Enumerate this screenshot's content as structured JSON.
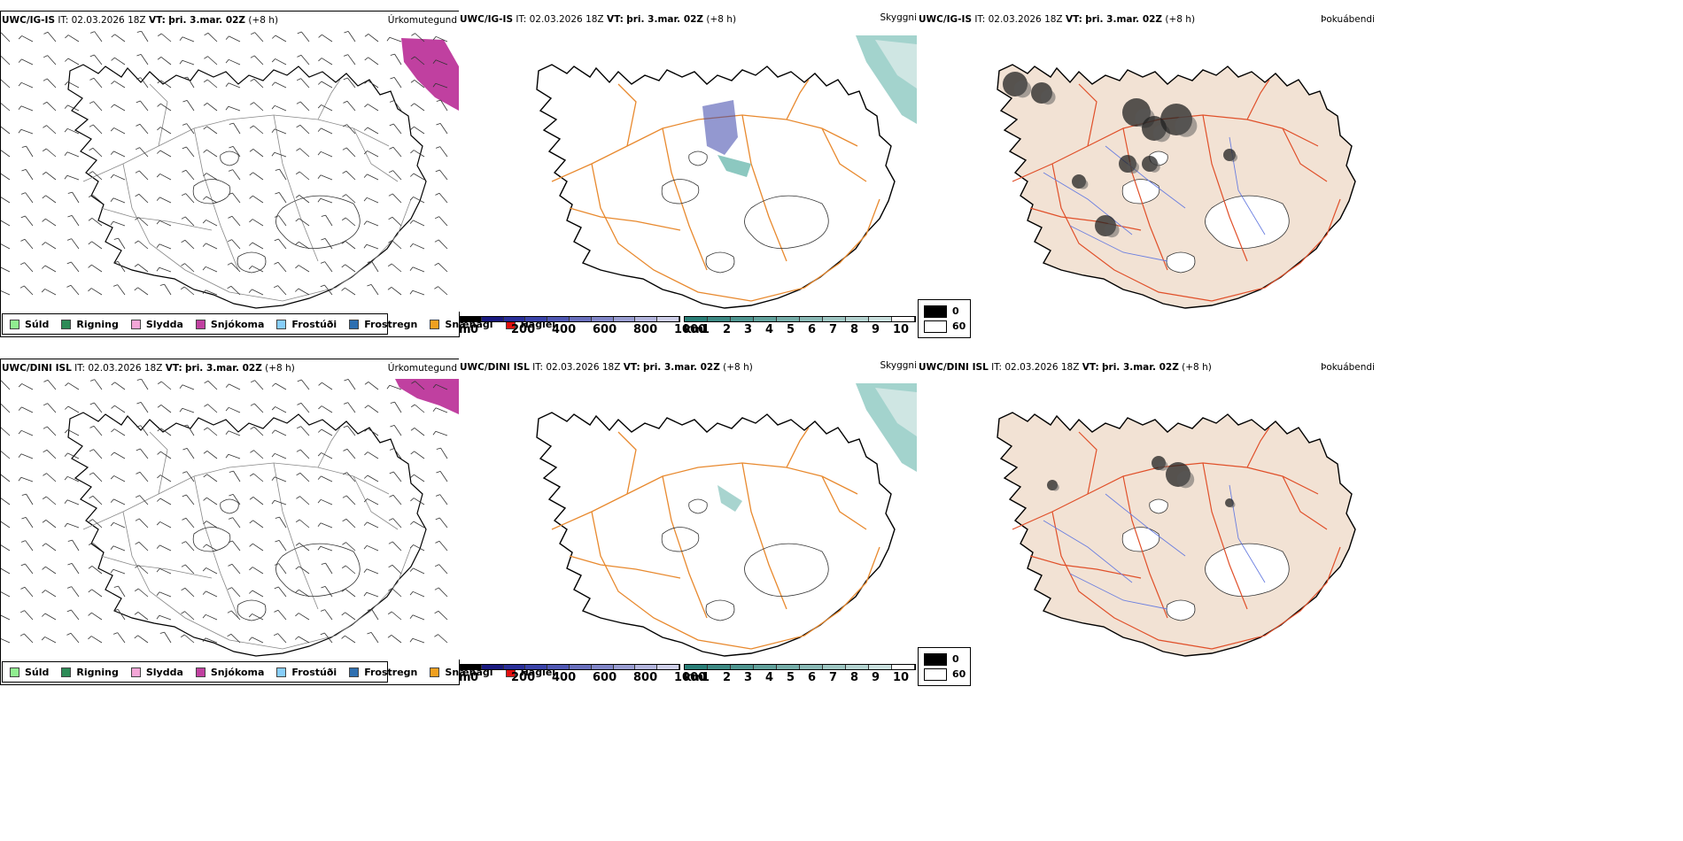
{
  "rows": [
    {
      "model": "UWC/IG-IS",
      "it_label": "IT:",
      "it_value": "02.03.2026 18Z",
      "vt_label": "VT:",
      "vt_value": "þri. 3.mar. 02Z",
      "lead": "(+8 h)"
    },
    {
      "model": "UWC/DINI ISL",
      "it_label": "IT:",
      "it_value": "02.03.2026 18Z",
      "vt_label": "VT:",
      "vt_value": "þri. 3.mar. 02Z",
      "lead": "(+8 h)"
    }
  ],
  "panels": {
    "precip": {
      "title": "Úrkomutegund"
    },
    "cloud": {
      "title": "Skyggni"
    },
    "fog": {
      "title": "Þokuábendi"
    }
  },
  "precip_legend": [
    {
      "label": "Súld",
      "color": "#90ee90"
    },
    {
      "label": "Rigning",
      "color": "#2e8b57"
    },
    {
      "label": "Slydda",
      "color": "#f4a6d7"
    },
    {
      "label": "Snjókoma",
      "color": "#c040a0"
    },
    {
      "label": "Frostúði",
      "color": "#87cefa"
    },
    {
      "label": "Frostregn",
      "color": "#2e6fb0"
    },
    {
      "label": "Snæhagl",
      "color": "#f0a020"
    },
    {
      "label": "Haglél",
      "color": "#e01010"
    }
  ],
  "height_bar": {
    "unit": "m",
    "ticks": [
      "0",
      "200",
      "400",
      "600",
      "800",
      "1000"
    ],
    "colors": [
      "#000000",
      "#1a1a80",
      "#2a2f9a",
      "#3b44aa",
      "#5058b4",
      "#6a70be",
      "#8186c8",
      "#9a9ed2",
      "#b4b6de",
      "#cfd0ea"
    ]
  },
  "visibility_bar": {
    "unit": "km",
    "ticks": [
      "1",
      "2",
      "3",
      "4",
      "5",
      "6",
      "7",
      "8",
      "9",
      "10"
    ],
    "colors": [
      "#2a7f78",
      "#3d8a84",
      "#4f9690",
      "#62a29c",
      "#76aea9",
      "#8abab6",
      "#9fc7c3",
      "#b5d4d1",
      "#cbe1df",
      "#ffffff"
    ]
  },
  "fog_legend": {
    "low": "0",
    "high": "60"
  },
  "map_colors": {
    "coast": "#000000",
    "roads": "#e8892e",
    "roads_fog": "#e0502a",
    "land_fog": "#f2e2d4",
    "rivers": "#6a7ee0"
  }
}
